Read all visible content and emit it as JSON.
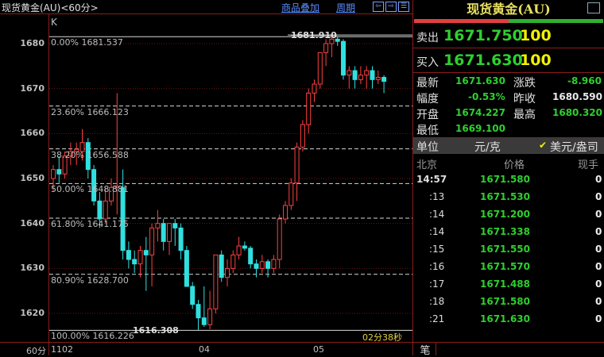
{
  "header": {
    "title": "现货黄金(AU)<60分>",
    "overlay_label": "商品叠加",
    "period_label": "周期",
    "nav_icons": [
      "arrow-left-icon",
      "arrow-right-icon",
      "split-icon"
    ]
  },
  "chart_data": {
    "type": "candlestick",
    "indicator_label": "K",
    "period": "60分",
    "yaxis_ticks": [
      1680,
      1670,
      1660,
      1650,
      1640,
      1630,
      1620
    ],
    "xaxis_ticks": [
      "1102",
      "04",
      "05"
    ],
    "high_marker": "1681.910",
    "low_marker": "1616.308",
    "fib_levels": [
      {
        "label": "0.00% 1681.537",
        "value": 1681.537
      },
      {
        "label": "23.60% 1666.123",
        "value": 1666.123
      },
      {
        "label": "38.20% 1656.588",
        "value": 1656.588
      },
      {
        "label": "50.00% 1648.881",
        "value": 1648.881
      },
      {
        "label": "61.80% 1641.175",
        "value": 1641.175
      },
      {
        "label": "80.90% 1628.700",
        "value": 1628.7
      },
      {
        "label": "100.00% 1616.226",
        "value": 1616.226
      }
    ],
    "countdown": "02分38秒",
    "colors": {
      "up": "#ff4040",
      "down": "#30e0e0"
    },
    "ohlc": [
      [
        1650,
        1653,
        1647,
        1652
      ],
      [
        1652,
        1655,
        1649,
        1651
      ],
      [
        1651,
        1656,
        1650,
        1655
      ],
      [
        1655,
        1658,
        1653,
        1656
      ],
      [
        1656,
        1658,
        1653,
        1656.5
      ],
      [
        1656,
        1661,
        1654,
        1658
      ],
      [
        1658,
        1659,
        1650,
        1652
      ],
      [
        1652,
        1653,
        1644,
        1645
      ],
      [
        1645,
        1647,
        1639,
        1641
      ],
      [
        1641,
        1648,
        1640,
        1645
      ],
      [
        1645,
        1650,
        1644,
        1648
      ],
      [
        1648,
        1669,
        1642,
        1648.3
      ],
      [
        1648,
        1652,
        1632,
        1634
      ],
      [
        1634,
        1636,
        1630,
        1632
      ],
      [
        1632,
        1634,
        1629,
        1631
      ],
      [
        1631,
        1635,
        1628,
        1634
      ],
      [
        1634,
        1637,
        1625,
        1633
      ],
      [
        1633,
        1640,
        1626,
        1639
      ],
      [
        1639,
        1643,
        1636,
        1640
      ],
      [
        1640,
        1641,
        1634,
        1636
      ],
      [
        1636,
        1640,
        1633,
        1640
      ],
      [
        1640,
        1641,
        1635,
        1639
      ],
      [
        1639,
        1640,
        1632,
        1634
      ],
      [
        1634,
        1635,
        1626,
        1626
      ],
      [
        1626,
        1627,
        1621,
        1622
      ],
      [
        1622,
        1623,
        1616.3,
        1619
      ],
      [
        1619,
        1626,
        1617,
        1617.5
      ],
      [
        1617.5,
        1625,
        1616.5,
        1621
      ],
      [
        1621,
        1633,
        1620,
        1633
      ],
      [
        1633,
        1634,
        1627,
        1628
      ],
      [
        1628,
        1632,
        1626,
        1630
      ],
      [
        1630,
        1634,
        1629,
        1633
      ],
      [
        1633,
        1637,
        1632,
        1635
      ],
      [
        1635,
        1636,
        1634,
        1634.5
      ],
      [
        1634.5,
        1635,
        1630,
        1631
      ],
      [
        1631,
        1632,
        1628,
        1630
      ],
      [
        1630,
        1633,
        1629,
        1631.5
      ],
      [
        1631.5,
        1632,
        1628,
        1630
      ],
      [
        1630,
        1633,
        1629,
        1632
      ],
      [
        1632,
        1642,
        1630,
        1641
      ],
      [
        1641,
        1645,
        1640,
        1644
      ],
      [
        1644,
        1650,
        1643,
        1649
      ],
      [
        1649,
        1658,
        1645,
        1657
      ],
      [
        1657,
        1663,
        1656,
        1662
      ],
      [
        1662,
        1670,
        1660,
        1669
      ],
      [
        1669,
        1672,
        1667,
        1671
      ],
      [
        1671,
        1678,
        1670,
        1678
      ],
      [
        1678,
        1681,
        1675,
        1680
      ],
      [
        1680,
        1681.9,
        1677,
        1681
      ],
      [
        1681,
        1681.5,
        1679.5,
        1680.5
      ],
      [
        1680.5,
        1681,
        1672,
        1673
      ],
      [
        1673,
        1675,
        1670,
        1674
      ],
      [
        1674,
        1675,
        1670,
        1672
      ],
      [
        1672,
        1675,
        1671,
        1673
      ],
      [
        1673,
        1675,
        1670,
        1674
      ],
      [
        1674,
        1675,
        1670,
        1672
      ],
      [
        1672,
        1674,
        1671,
        1672.5
      ],
      [
        1672.5,
        1673,
        1669,
        1671.6
      ]
    ]
  },
  "quote": {
    "title": "现货黄金(AU)",
    "sell_label": "卖出",
    "sell_price": "1671.750",
    "sell_vol": "100",
    "buy_label": "买入",
    "buy_price": "1671.630",
    "buy_vol": "100",
    "stats": [
      {
        "label": "最新",
        "value": "1671.630"
      },
      {
        "label": "涨跌",
        "value": "-8.960"
      },
      {
        "label": "幅度",
        "value": "-0.53%"
      },
      {
        "label": "昨收",
        "value": "1680.590"
      },
      {
        "label": "开盘",
        "value": "1674.227"
      },
      {
        "label": "最高",
        "value": "1680.320"
      },
      {
        "label": "最低",
        "value": "1669.100"
      }
    ],
    "unit_label": "单位",
    "unit_cny": "元/克",
    "unit_usd": "美元/盎司",
    "cols": [
      "北京",
      "价格",
      "现手"
    ],
    "ticks": [
      {
        "t": "14:57",
        "p": "1671.580",
        "v": "0"
      },
      {
        "t": ":13",
        "p": "1671.530",
        "v": "0"
      },
      {
        "t": ":14",
        "p": "1671.200",
        "v": "0"
      },
      {
        "t": ":14",
        "p": "1671.338",
        "v": "0"
      },
      {
        "t": ":15",
        "p": "1671.550",
        "v": "0"
      },
      {
        "t": ":16",
        "p": "1671.570",
        "v": "0"
      },
      {
        "t": ":17",
        "p": "1671.488",
        "v": "0"
      },
      {
        "t": ":18",
        "p": "1671.580",
        "v": "0"
      },
      {
        "t": ":21",
        "p": "1671.630",
        "v": "0"
      }
    ],
    "tab_label": "笔"
  }
}
